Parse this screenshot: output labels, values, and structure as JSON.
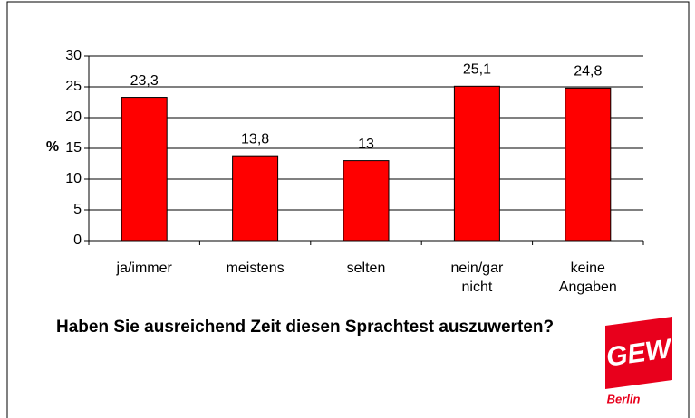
{
  "chart_data": {
    "type": "bar",
    "title": "Haben Sie ausreichend Zeit diesen Sprachtest auszuwerten?",
    "y_label": "%",
    "categories": [
      "ja/immer",
      "meistens",
      "selten",
      "nein/gar nicht",
      "keine Angaben"
    ],
    "values": [
      23.3,
      13.8,
      13,
      25.1,
      24.8
    ],
    "value_labels": [
      "23,3",
      "13,8",
      "13",
      "25,1",
      "24,8"
    ],
    "color": "#ff0000",
    "ylim": [
      0,
      30
    ],
    "yticks": [
      0,
      5,
      10,
      15,
      20,
      25,
      30
    ],
    "grid": true
  },
  "logo": {
    "text": "GEW",
    "subtext": "Berlin"
  }
}
